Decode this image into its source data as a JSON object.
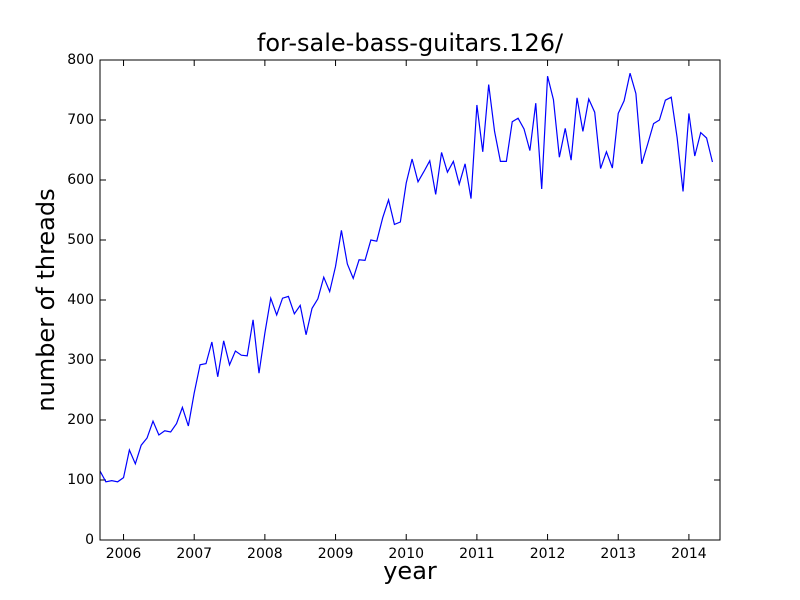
{
  "chart_data": {
    "type": "line",
    "title": "for-sale-bass-guitars.126/",
    "x_label": "year",
    "y_label": "number of threads",
    "x": [
      2005.667,
      2005.75,
      2005.833,
      2005.917,
      2006,
      2006.083,
      2006.167,
      2006.25,
      2006.333,
      2006.417,
      2006.5,
      2006.583,
      2006.667,
      2006.75,
      2006.833,
      2006.917,
      2007,
      2007.083,
      2007.167,
      2007.25,
      2007.333,
      2007.417,
      2007.5,
      2007.583,
      2007.667,
      2007.75,
      2007.833,
      2007.917,
      2008,
      2008.083,
      2008.167,
      2008.25,
      2008.333,
      2008.417,
      2008.5,
      2008.583,
      2008.667,
      2008.75,
      2008.833,
      2008.917,
      2009,
      2009.083,
      2009.167,
      2009.25,
      2009.333,
      2009.417,
      2009.5,
      2009.583,
      2009.667,
      2009.75,
      2009.833,
      2009.917,
      2010,
      2010.083,
      2010.167,
      2010.25,
      2010.333,
      2010.417,
      2010.5,
      2010.583,
      2010.667,
      2010.75,
      2010.833,
      2010.917,
      2011,
      2011.083,
      2011.167,
      2011.25,
      2011.333,
      2011.417,
      2011.5,
      2011.583,
      2011.667,
      2011.75,
      2011.833,
      2011.917,
      2012,
      2012.083,
      2012.167,
      2012.25,
      2012.333,
      2012.417,
      2012.5,
      2012.583,
      2012.667,
      2012.75,
      2012.833,
      2012.917,
      2013,
      2013.083,
      2013.167,
      2013.25,
      2013.333,
      2013.417,
      2013.5,
      2013.583,
      2013.667,
      2013.75,
      2013.833,
      2013.917,
      2014,
      2014.083,
      2014.167,
      2014.25,
      2014.333
    ],
    "series": [
      {
        "color": "#0000ff",
        "values": [
          115,
          97,
          99,
          97,
          104,
          150,
          127,
          158,
          170,
          198,
          175,
          182,
          180,
          194,
          221,
          190,
          245,
          292,
          294,
          330,
          272,
          332,
          292,
          315,
          308,
          307,
          367,
          278,
          345,
          403,
          375,
          403,
          406,
          377,
          391,
          342,
          386,
          402,
          438,
          414,
          456,
          516,
          460,
          436,
          467,
          466,
          500,
          498,
          537,
          567,
          526,
          530,
          595,
          635,
          597,
          614,
          632,
          576,
          646,
          613,
          631,
          593,
          627,
          569,
          725,
          647,
          759,
          681,
          631,
          631,
          697,
          703,
          685,
          649,
          728,
          585,
          773,
          734,
          638,
          686,
          633,
          737,
          681,
          735,
          713,
          619,
          647,
          620,
          711,
          732,
          778,
          744,
          627,
          660,
          694,
          700,
          733,
          738,
          671,
          581,
          711,
          640,
          679,
          670,
          630
        ]
      }
    ],
    "xlim": [
      2005.667,
      2014.44
    ],
    "ylim": [
      0,
      800
    ],
    "xticks": [
      2006,
      2007,
      2008,
      2009,
      2010,
      2011,
      2012,
      2013,
      2014
    ],
    "yticks": [
      0,
      100,
      200,
      300,
      400,
      500,
      600,
      700,
      800
    ]
  }
}
